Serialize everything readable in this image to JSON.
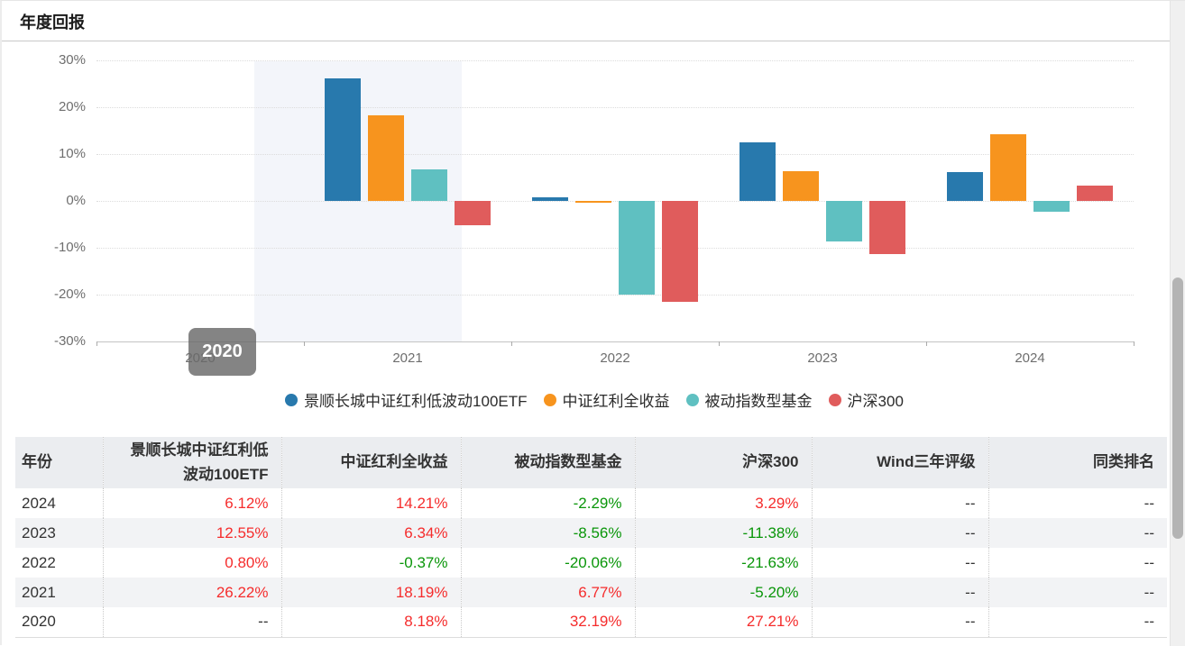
{
  "header": {
    "title": "年度回报"
  },
  "chart_data": {
    "type": "bar",
    "title": "年度回报",
    "categories": [
      "2020",
      "2021",
      "2022",
      "2023",
      "2024"
    ],
    "series": [
      {
        "name": "景顺长城中证红利低波动100ETF",
        "color": "#2879ad",
        "values": [
          null,
          26.22,
          0.8,
          12.55,
          6.12
        ]
      },
      {
        "name": "中证红利全收益",
        "color": "#f7941e",
        "values": [
          null,
          18.19,
          -0.37,
          6.34,
          14.21
        ]
      },
      {
        "name": "被动指数型基金",
        "color": "#5fc0c1",
        "values": [
          null,
          6.77,
          -20.06,
          -8.56,
          -2.29
        ]
      },
      {
        "name": "沪深300",
        "color": "#e05c5c",
        "values": [
          null,
          -5.2,
          -21.63,
          -11.38,
          3.29
        ]
      }
    ],
    "y_ticks": [
      30,
      20,
      10,
      0,
      -10,
      -20,
      -30
    ],
    "y_tick_suffix": "%",
    "ylim": [
      -30,
      30
    ],
    "grid": "horizontal-dotted",
    "legend_position": "bottom",
    "tooltip": {
      "label": "2020"
    },
    "highlighted_category": "2020"
  },
  "table": {
    "columns": [
      "年份",
      "景顺长城中证红利低波动100ETF",
      "中证红利全收益",
      "被动指数型基金",
      "沪深300",
      "Wind三年评级",
      "同类排名"
    ],
    "rows": [
      [
        "2024",
        "6.12%",
        "14.21%",
        "-2.29%",
        "3.29%",
        "--",
        "--"
      ],
      [
        "2023",
        "12.55%",
        "6.34%",
        "-8.56%",
        "-11.38%",
        "--",
        "--"
      ],
      [
        "2022",
        "0.80%",
        "-0.37%",
        "-20.06%",
        "-21.63%",
        "--",
        "--"
      ],
      [
        "2021",
        "26.22%",
        "18.19%",
        "6.77%",
        "-5.20%",
        "--",
        "--"
      ],
      [
        "2020",
        "--",
        "8.18%",
        "32.19%",
        "27.21%",
        "--",
        "--"
      ]
    ],
    "positive_color": "#f52c2c",
    "negative_color": "#0a960a",
    "neutral_color": "#333333"
  }
}
